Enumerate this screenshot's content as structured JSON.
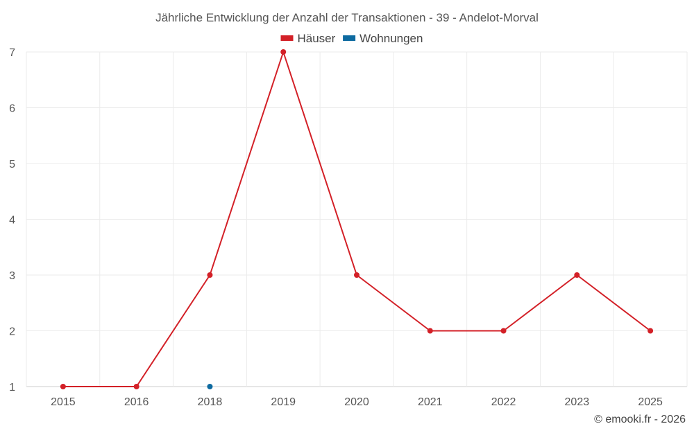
{
  "chart_data": {
    "type": "line",
    "title": "Jährliche Entwicklung der Anzahl der Transaktionen - 39 - Andelot-Morval",
    "categories": [
      "2015",
      "2016",
      "2018",
      "2019",
      "2020",
      "2021",
      "2022",
      "2023",
      "2025"
    ],
    "series": [
      {
        "name": "Häuser",
        "color": "#d32027",
        "values": [
          1,
          1,
          3,
          7,
          3,
          2,
          2,
          3,
          2
        ]
      },
      {
        "name": "Wohnungen",
        "color": "#0d6aa0",
        "values": [
          null,
          null,
          1,
          null,
          null,
          null,
          null,
          null,
          null
        ]
      }
    ],
    "ylim": [
      1,
      7
    ],
    "yticks": [
      1,
      2,
      3,
      4,
      5,
      6,
      7
    ],
    "grid": true,
    "legend_position": "top-center",
    "credit": "© emooki.fr - 2026"
  }
}
